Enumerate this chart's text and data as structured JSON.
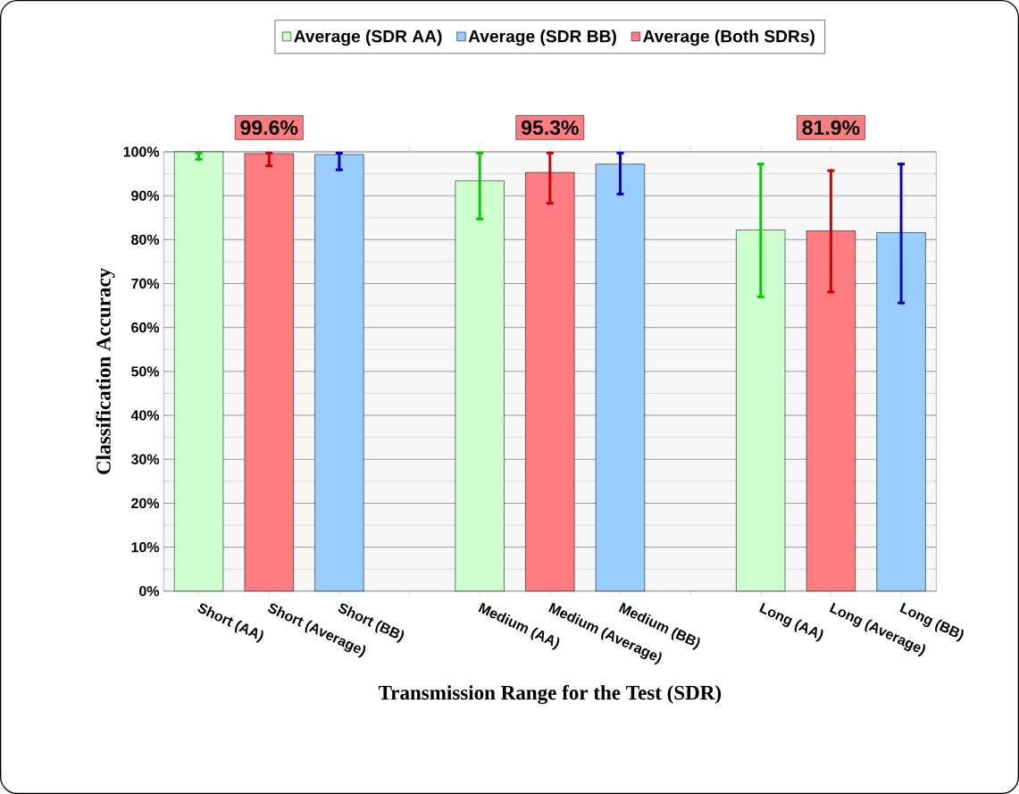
{
  "chart_data": {
    "type": "bar",
    "categories": [
      "Short (AA)",
      "Short (Average)",
      "Short (BB)",
      null,
      "Medium (AA)",
      "Medium (Average)",
      "Medium (BB)",
      null,
      "Long (AA)",
      "Long (Average)",
      "Long (BB)"
    ],
    "series": [
      {
        "name": "Average (SDR AA)",
        "color": "#ccffcc",
        "values": [
          100,
          null,
          null,
          null,
          93.4,
          null,
          null,
          null,
          82.2,
          null,
          null
        ],
        "errors": [
          [
            98,
            100
          ],
          null,
          null,
          null,
          [
            84.4,
            100
          ],
          null,
          null,
          null,
          [
            66.7,
            97.5
          ],
          null,
          null
        ]
      },
      {
        "name": "Average (SDR BB)",
        "color": "#99ccff",
        "values": [
          null,
          null,
          99.4,
          null,
          null,
          null,
          97.2,
          null,
          null,
          null,
          81.6
        ],
        "errors": [
          null,
          null,
          [
            95.6,
            100
          ],
          null,
          null,
          null,
          [
            90.1,
            100
          ],
          null,
          null,
          null,
          [
            65.3,
            97.5
          ]
        ]
      },
      {
        "name": "Average (Both SDRs)",
        "color": "#ff7c80",
        "values": [
          null,
          99.6,
          null,
          null,
          null,
          95.3,
          null,
          null,
          null,
          82.0,
          null
        ],
        "errors": [
          null,
          [
            96.5,
            100
          ],
          null,
          null,
          null,
          [
            88.0,
            100
          ],
          null,
          null,
          null,
          [
            67.8,
            96.0
          ],
          null
        ]
      }
    ],
    "ylim": [
      0,
      100
    ],
    "yticks": [
      {
        "value": 0,
        "label": "0%"
      },
      {
        "value": 10,
        "label": "10%"
      },
      {
        "value": 20,
        "label": "20%"
      },
      {
        "value": 30,
        "label": "30%"
      },
      {
        "value": 40,
        "label": "40%"
      },
      {
        "value": 50,
        "label": "50%"
      },
      {
        "value": 60,
        "label": "60%"
      },
      {
        "value": 70,
        "label": "70%"
      },
      {
        "value": 80,
        "label": "80%"
      },
      {
        "value": 90,
        "label": "90%"
      },
      {
        "value": 100,
        "label": "100%"
      }
    ],
    "xlabel": "Transmission Range for the Test (SDR)",
    "ylabel": "Classification Accuracy",
    "annotations": [
      "99.6%",
      "95.3%",
      "81.9%"
    ],
    "grid": "y",
    "legend": "top"
  }
}
